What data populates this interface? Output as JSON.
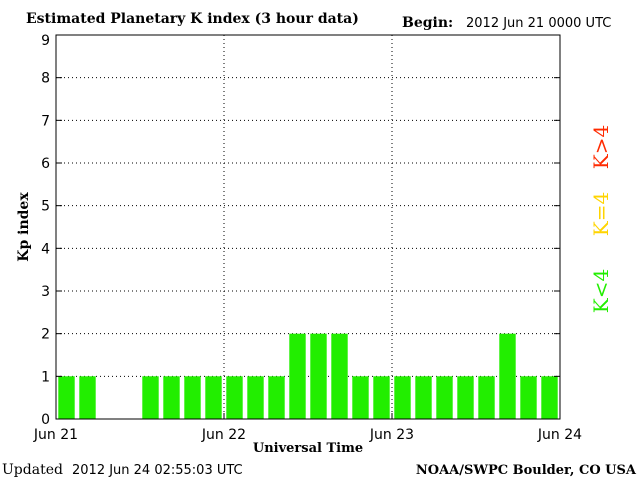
{
  "header": {
    "title": "Estimated Planetary K index (3 hour data)",
    "begin_label": "Begin:",
    "begin_value": "2012 Jun 21 0000 UTC"
  },
  "footer": {
    "updated_label": "Updated",
    "updated_value": "2012 Jun 24 02:55:03 UTC",
    "credit": "NOAA/SWPC Boulder, CO USA"
  },
  "legend": [
    {
      "label": "K>4",
      "color": "#ff2a00"
    },
    {
      "label": "K=4",
      "color": "#ffd400"
    },
    {
      "label": "K<4",
      "color": "#22ee00"
    }
  ],
  "colors": {
    "bar": "#22ee00",
    "grid": "#000000"
  },
  "chart_data": {
    "type": "bar",
    "xlabel": "Universal Time",
    "ylabel": "Kp index",
    "ylim": [
      0,
      9
    ],
    "yticks": [
      0,
      1,
      2,
      3,
      4,
      5,
      6,
      7,
      8,
      9
    ],
    "xticks": [
      {
        "label": "Jun 21",
        "day": 0
      },
      {
        "label": "Jun 22",
        "day": 1
      },
      {
        "label": "Jun 23",
        "day": 2
      },
      {
        "label": "Jun 24",
        "day": 3
      }
    ],
    "interval_hours": 3,
    "values": [
      1,
      1,
      null,
      null,
      1,
      1,
      1,
      1,
      1,
      1,
      1,
      2,
      2,
      2,
      1,
      1,
      1,
      1,
      1,
      1,
      1,
      2,
      1,
      1
    ],
    "grid": true,
    "legend_placement": "right"
  }
}
